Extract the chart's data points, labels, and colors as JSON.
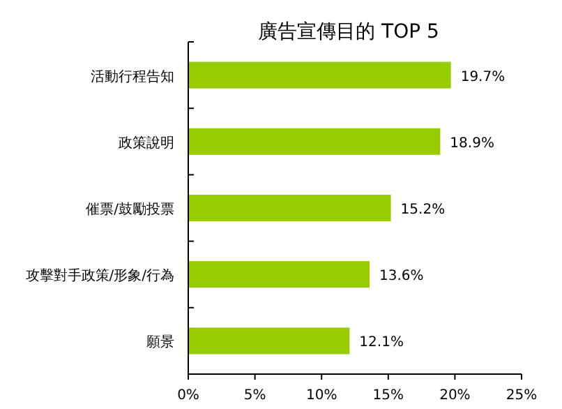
{
  "chart_data": {
    "type": "bar",
    "orientation": "horizontal",
    "title": "廣告宣傳目的 TOP 5",
    "categories": [
      "活動行程告知",
      "政策說明",
      "催票/鼓勵投票",
      "攻擊對手政策/形象/行為",
      "願景"
    ],
    "values": [
      19.7,
      18.9,
      15.2,
      13.6,
      12.1
    ],
    "value_labels": [
      "19.7%",
      "18.9%",
      "15.2%",
      "13.6%",
      "12.1%"
    ],
    "color": "#99cc00",
    "xlim": [
      0,
      25
    ],
    "xticks": [
      {
        "value": 0,
        "label": "0%"
      },
      {
        "value": 5,
        "label": "5%"
      },
      {
        "value": 10,
        "label": "10%"
      },
      {
        "value": 15,
        "label": "15%"
      },
      {
        "value": 20,
        "label": "20%"
      },
      {
        "value": 25,
        "label": "25%"
      }
    ]
  }
}
